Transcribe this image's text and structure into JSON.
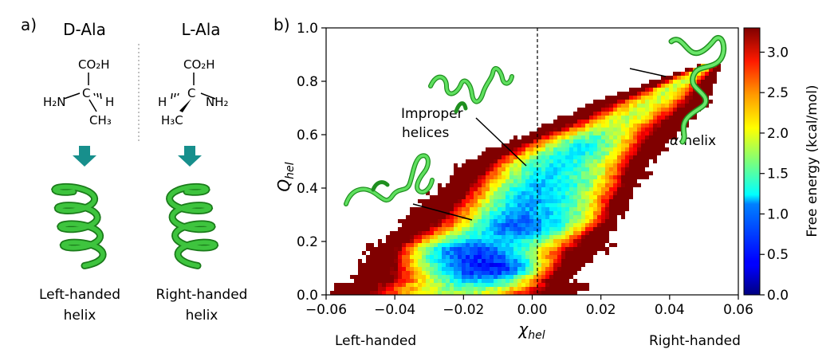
{
  "panel_a": {
    "label": "a)",
    "left": {
      "title": "D-Ala",
      "chem": {
        "top": "CO₂H",
        "amine": "H₂N",
        "carbon": "C",
        "hydrogen": "H",
        "methyl": "CH₃"
      },
      "caption_line1": "Left-handed",
      "caption_line2": "helix",
      "helix_handedness": "left"
    },
    "right": {
      "title": "L-Ala",
      "chem": {
        "top": "CO₂H",
        "amine": "NH₂",
        "carbon": "C",
        "hydrogen": "H",
        "methyl": "H₃C"
      },
      "caption_line1": "Right-handed",
      "caption_line2": "helix",
      "helix_handedness": "right"
    },
    "arrow_color": "#178f8c",
    "helix_color": "#3ec43e"
  },
  "panel_b": {
    "label": "b)",
    "annotations": {
      "improper_line1": "Improper",
      "improper_line2": "helices",
      "alpha_greek": "α",
      "alpha_text": "-helix"
    },
    "bottom_left": "Left-handed",
    "bottom_right": "Right-handed"
  },
  "chart_data": {
    "type": "heatmap",
    "title": "",
    "xlabel_symbol": "χ",
    "xlabel_sub": "hel",
    "ylabel_symbol": "Q",
    "ylabel_sub": "hel",
    "xlim": [
      -0.06,
      0.06
    ],
    "ylim": [
      0.0,
      1.0
    ],
    "x_ticks": [
      -0.06,
      -0.04,
      -0.02,
      0.0,
      0.02,
      0.04,
      0.06
    ],
    "x_tick_labels": [
      "−0.06",
      "−0.04",
      "−0.02",
      "0.00",
      "0.02",
      "0.04",
      "0.06"
    ],
    "y_ticks": [
      0.0,
      0.2,
      0.4,
      0.6,
      0.8,
      1.0
    ],
    "y_tick_labels": [
      "0.0",
      "0.2",
      "0.4",
      "0.6",
      "0.8",
      "1.0"
    ],
    "reference_line_x": 0.0,
    "colorbar": {
      "label": "Free energy (kcal/mol)",
      "range": [
        0.0,
        3.3
      ],
      "ticks": [
        0.0,
        0.5,
        1.0,
        1.5,
        2.0,
        2.5,
        3.0
      ],
      "tick_labels": [
        "0.0",
        "0.5",
        "1.0",
        "1.5",
        "2.0",
        "2.5",
        "3.0"
      ],
      "colormap": "jet"
    },
    "free_energy_basins": [
      {
        "x": -0.01,
        "y": 0.1,
        "free_energy": 0.2
      },
      {
        "x": -0.022,
        "y": 0.16,
        "free_energy": 0.5
      },
      {
        "x": 0.0,
        "y": 0.26,
        "free_energy": 0.5
      },
      {
        "x": 0.008,
        "y": 0.3,
        "free_energy": 0.7
      },
      {
        "x": 0.01,
        "y": 0.43,
        "free_energy": 0.9
      },
      {
        "x": 0.004,
        "y": 0.37,
        "free_energy": 0.9
      },
      {
        "x": 0.014,
        "y": 0.54,
        "free_energy": 1.2
      },
      {
        "x": 0.008,
        "y": 0.47,
        "free_energy": 1.2
      }
    ]
  }
}
